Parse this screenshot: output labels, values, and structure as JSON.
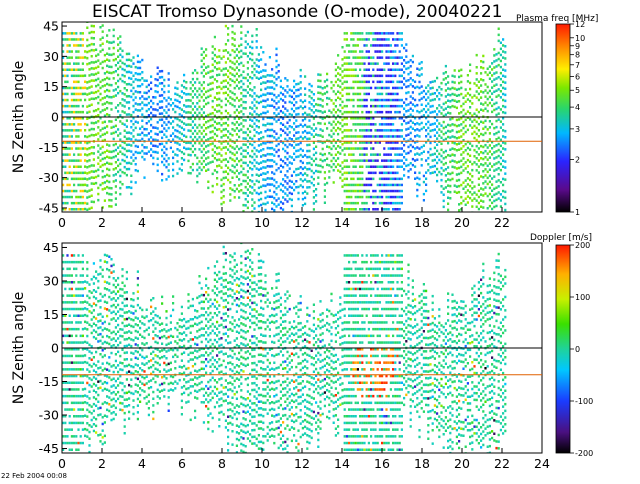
{
  "title": "EISCAT Tromso Dynasonde (O-mode),  20040221",
  "timestamp": "22 Feb 2004 00:08",
  "chart_data": [
    {
      "type": "heatmap",
      "name": "plasma-frequency",
      "ylabel": "NS Zenith angle",
      "xlabel": "",
      "xlim": [
        0,
        24
      ],
      "ylim": [
        -47,
        47
      ],
      "x_ticks": [
        0,
        2,
        4,
        6,
        8,
        10,
        12,
        14,
        16,
        18,
        20,
        22
      ],
      "y_ticks": [
        45,
        30,
        15,
        0,
        -15,
        -30,
        -45
      ],
      "reference_lines": [
        {
          "y": 0,
          "color": "#000000"
        },
        {
          "y": -12,
          "color": "#e06000"
        }
      ],
      "colorbar": {
        "label": "Plasma freq [MHz]",
        "scale": "log",
        "range": [
          1,
          12
        ],
        "ticks": [
          1,
          2,
          3,
          4,
          5,
          6,
          7,
          8,
          9,
          10,
          12
        ]
      }
    },
    {
      "type": "heatmap",
      "name": "doppler",
      "ylabel": "NS Zenith angle",
      "xlabel": "",
      "xlim": [
        0,
        24
      ],
      "ylim": [
        -47,
        47
      ],
      "x_ticks": [
        0,
        2,
        4,
        6,
        8,
        10,
        12,
        14,
        16,
        18,
        20,
        22,
        24
      ],
      "y_ticks": [
        45,
        30,
        15,
        0,
        -15,
        -30,
        -45
      ],
      "reference_lines": [
        {
          "y": 0,
          "color": "#000000"
        },
        {
          "y": -12,
          "color": "#e06000"
        }
      ],
      "colorbar": {
        "label": "Doppler [m/s]",
        "scale": "linear",
        "range": [
          -200,
          200
        ],
        "ticks": [
          200,
          100,
          0,
          -100,
          -200
        ]
      }
    }
  ]
}
